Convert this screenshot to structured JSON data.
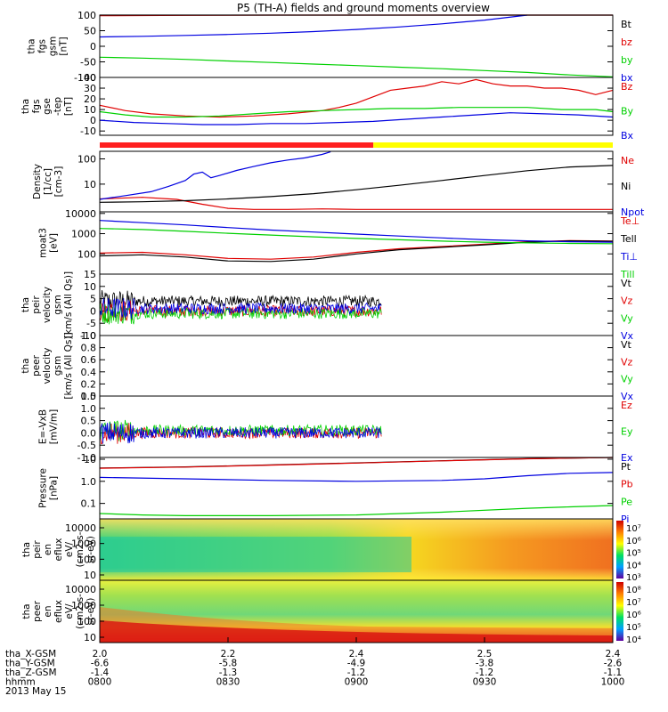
{
  "title": "P5 (TH-A) fields and ground moments overview",
  "colors": {
    "black": "#000000",
    "red": "#e00000",
    "green": "#00d000",
    "blue": "#0000e0",
    "yellow": "#ffff00"
  },
  "chart_data": [
    {
      "type": "line",
      "ylabel": [
        "tha",
        "fgs",
        "gsm",
        "[nT]"
      ],
      "ylim": [
        -100,
        100
      ],
      "yticks": [
        "100",
        "50",
        "0",
        "-50",
        "-100"
      ],
      "series": [
        {
          "name": "Bt",
          "color": "black",
          "x": [
            0,
            10,
            20,
            30,
            60
          ],
          "y": [
            100,
            101,
            103,
            104,
            106
          ]
        },
        {
          "name": "bz",
          "color": "red",
          "x": [
            0,
            10,
            20,
            30,
            60
          ],
          "y": [
            98,
            99,
            100,
            101,
            103
          ]
        },
        {
          "name": "by",
          "color": "green",
          "x": [
            0,
            5,
            10,
            15,
            20,
            25,
            30,
            35,
            40,
            45,
            50,
            55,
            60
          ],
          "y": [
            -35,
            -38,
            -42,
            -47,
            -52,
            -57,
            -62,
            -67,
            -72,
            -78,
            -84,
            -92,
            -98
          ]
        },
        {
          "name": "bx",
          "color": "blue",
          "x": [
            0,
            5,
            10,
            15,
            20,
            25,
            30,
            35,
            40,
            45,
            50
          ],
          "y": [
            30,
            32,
            35,
            38,
            42,
            47,
            54,
            62,
            72,
            84,
            100
          ]
        }
      ]
    },
    {
      "type": "line",
      "ylabel": [
        "tha",
        "fgs",
        "gse",
        "-tep",
        "[nT]"
      ],
      "ylim": [
        -14,
        40
      ],
      "yticks": [
        "40",
        "30",
        "20",
        "10",
        "0",
        "-10"
      ],
      "series": [
        {
          "name": "Bz",
          "color": "red",
          "x": [
            0,
            3,
            6,
            10,
            14,
            18,
            22,
            26,
            28,
            30,
            32,
            34,
            36,
            38,
            40,
            42,
            44,
            46,
            48,
            50,
            52,
            54,
            56,
            58,
            60
          ],
          "y": [
            14,
            9,
            6,
            4,
            3,
            4,
            6,
            9,
            12,
            16,
            22,
            28,
            30,
            32,
            36,
            34,
            38,
            34,
            32,
            32,
            30,
            30,
            28,
            24,
            28
          ]
        },
        {
          "name": "By",
          "color": "green",
          "x": [
            0,
            3,
            6,
            10,
            14,
            18,
            22,
            26,
            30,
            34,
            38,
            42,
            46,
            50,
            54,
            58,
            60
          ],
          "y": [
            8,
            5,
            3,
            3,
            4,
            6,
            8,
            9,
            10,
            11,
            11,
            12,
            12,
            12,
            10,
            10,
            8
          ]
        },
        {
          "name": "Bx",
          "color": "blue",
          "x": [
            0,
            4,
            8,
            12,
            16,
            20,
            24,
            28,
            32,
            36,
            40,
            44,
            48,
            52,
            56,
            60
          ],
          "y": [
            0,
            -2,
            -3,
            -4,
            -4,
            -3,
            -3,
            -2,
            -1,
            1,
            3,
            5,
            7,
            6,
            5,
            3
          ]
        }
      ]
    },
    {
      "type": "line",
      "scale": "log",
      "ylabel": [
        "Density",
        "[1/cc]",
        "[cm-3]"
      ],
      "ylim": [
        0.8,
        200
      ],
      "yticks": [
        {
          "v": 100,
          "label": "100"
        },
        {
          "v": 10,
          "label": "10"
        }
      ],
      "series": [
        {
          "name": "Ne",
          "color": "red",
          "x": [
            0,
            5,
            9,
            12,
            15,
            18,
            22,
            26,
            30,
            35,
            40,
            45,
            50,
            55,
            60
          ],
          "y": [
            2.6,
            3.0,
            2.5,
            1.6,
            1.1,
            1.0,
            1.0,
            1.05,
            1.0,
            1.0,
            1.0,
            1.0,
            1.0,
            1.0,
            1.0
          ]
        },
        {
          "name": "Ni",
          "color": "black",
          "x": [
            0,
            5,
            10,
            15,
            20,
            25,
            30,
            35,
            40,
            45,
            50,
            55,
            60
          ],
          "y": [
            1.9,
            2.0,
            2.2,
            2.6,
            3.2,
            4.2,
            6.0,
            9.0,
            14,
            22,
            34,
            48,
            55
          ]
        },
        {
          "name": "Npot",
          "color": "blue",
          "x": [
            0,
            3,
            6,
            8,
            10,
            11,
            12,
            13,
            14,
            16,
            18,
            20,
            22,
            24,
            26,
            27
          ],
          "y": [
            2.5,
            3.5,
            5,
            8,
            14,
            25,
            30,
            18,
            22,
            35,
            50,
            70,
            90,
            110,
            150,
            190
          ]
        }
      ]
    },
    {
      "type": "line",
      "scale": "log",
      "ylabel": [
        "moat3",
        "[eV]"
      ],
      "ylim": [
        10,
        12000
      ],
      "yticks": [
        {
          "v": 10000,
          "label": "10000"
        },
        {
          "v": 1000,
          "label": "1000"
        },
        {
          "v": 100,
          "label": "100"
        }
      ],
      "series": [
        {
          "name": "Te⊥",
          "color": "red",
          "x": [
            0,
            5,
            10,
            15,
            20,
            25,
            30,
            35,
            40,
            45,
            50,
            55,
            60
          ],
          "y": [
            110,
            120,
            90,
            60,
            55,
            70,
            120,
            180,
            230,
            300,
            400,
            450,
            430
          ]
        },
        {
          "name": "Tell",
          "color": "black",
          "x": [
            0,
            5,
            10,
            15,
            20,
            25,
            30,
            35,
            40,
            45,
            50,
            55,
            60
          ],
          "y": [
            80,
            90,
            70,
            45,
            42,
            55,
            100,
            160,
            210,
            280,
            380,
            440,
            420
          ]
        },
        {
          "name": "Ti⊥",
          "color": "blue",
          "x": [
            0,
            5,
            10,
            15,
            20,
            25,
            30,
            35,
            40,
            45,
            50,
            55,
            60
          ],
          "y": [
            4500,
            3500,
            2700,
            2000,
            1500,
            1200,
            950,
            760,
            620,
            500,
            440,
            400,
            380
          ]
        },
        {
          "name": "Till",
          "color": "green",
          "x": [
            0,
            5,
            10,
            15,
            20,
            25,
            30,
            35,
            40,
            45,
            50,
            55,
            60
          ],
          "y": [
            1800,
            1600,
            1300,
            1050,
            850,
            700,
            580,
            500,
            430,
            380,
            350,
            330,
            320
          ]
        }
      ]
    },
    {
      "type": "line",
      "ylabel": [
        "tha",
        "peir",
        "velocity",
        "gsm",
        "[km/s (All Qs)]"
      ],
      "ylim": [
        -10,
        15
      ],
      "yticks": [
        "15",
        "10",
        "5",
        "0",
        "-5",
        "-10"
      ],
      "noise_end": 33,
      "series": [
        {
          "name": "Vt",
          "color": "black",
          "center": 4
        },
        {
          "name": "Vz",
          "color": "red",
          "center": 0
        },
        {
          "name": "Vy",
          "color": "green",
          "center": -1
        },
        {
          "name": "Vx",
          "color": "blue",
          "center": 1
        }
      ]
    },
    {
      "type": "line",
      "ylabel": [
        "tha",
        "peer",
        "velocity",
        "gsm",
        "[km/s (All Qs)]"
      ],
      "ylim": [
        0,
        1
      ],
      "yticks": [
        "1.0",
        "0.8",
        "0.6",
        "0.4",
        "0.2",
        "0.0"
      ],
      "series": [
        {
          "name": "Vt",
          "color": "black"
        },
        {
          "name": "Vz",
          "color": "red"
        },
        {
          "name": "Vy",
          "color": "green"
        },
        {
          "name": "Vx",
          "color": "blue"
        }
      ]
    },
    {
      "type": "line",
      "ylabel": [
        "E=-VxB",
        "[mV/m]"
      ],
      "ylim": [
        -1,
        1.5
      ],
      "yticks": [
        "1.5",
        "1.0",
        "0.5",
        "0.0",
        "-0.5",
        "-1.0"
      ],
      "noise_end": 33,
      "series": [
        {
          "name": "Ez",
          "color": "red",
          "center": 0
        },
        {
          "name": "Ey",
          "color": "green",
          "center": 0.1
        },
        {
          "name": "Ex",
          "color": "blue",
          "center": 0
        }
      ]
    },
    {
      "type": "line",
      "scale": "log",
      "ylabel": [
        "Pressure",
        "[nPa]"
      ],
      "ylim": [
        0.02,
        12
      ],
      "yticks": [
        {
          "v": 10,
          "label": "10"
        },
        {
          "v": 1,
          "label": "1.0"
        },
        {
          "v": 0.1,
          "label": "0.1"
        }
      ],
      "series": [
        {
          "name": "Pt",
          "color": "black",
          "x": [
            0,
            10,
            20,
            30,
            40,
            50,
            60
          ],
          "y": [
            4,
            4.5,
            5.5,
            6.8,
            8.5,
            10.5,
            13
          ]
        },
        {
          "name": "Pb",
          "color": "red",
          "x": [
            0,
            10,
            20,
            30,
            40,
            50,
            60
          ],
          "y": [
            3.9,
            4.4,
            5.4,
            6.7,
            8.4,
            10.4,
            12.8
          ]
        },
        {
          "name": "Pe",
          "color": "green",
          "x": [
            0,
            5,
            10,
            20,
            30,
            40,
            50,
            55,
            60
          ],
          "y": [
            0.035,
            0.03,
            0.028,
            0.028,
            0.03,
            0.04,
            0.06,
            0.07,
            0.08
          ]
        },
        {
          "name": "Pi",
          "color": "blue",
          "x": [
            0,
            10,
            20,
            30,
            40,
            45,
            50,
            55,
            60
          ],
          "y": [
            1.5,
            1.3,
            1.1,
            1.0,
            1.1,
            1.3,
            1.8,
            2.3,
            2.5
          ]
        }
      ]
    },
    {
      "type": "heatmap",
      "ylabel": [
        "tha",
        "peir",
        "en",
        "eflux",
        "eV/",
        "(cm2-s-",
        "sr-eV)"
      ],
      "yticks": [
        "10000",
        "1000",
        "100",
        "10"
      ],
      "colorbar": [
        "10⁷",
        "10⁶",
        "10⁵",
        "10⁴",
        "10³"
      ]
    },
    {
      "type": "heatmap",
      "ylabel": [
        "tha",
        "peer",
        "en",
        "eflux",
        "eV/",
        "(cm2-s-",
        "sr-eV)"
      ],
      "yticks": [
        "10000",
        "1000",
        "100",
        "10"
      ],
      "colorbar": [
        "10⁸",
        "10⁷",
        "10⁶",
        "10⁵",
        "10⁴"
      ]
    }
  ],
  "flag_bar": {
    "red_until_minute": 32
  },
  "x_axis": {
    "row_labels": [
      "tha_X-GSM",
      "tha_Y-GSM",
      "tha_Z-GSM",
      "hhmm",
      "2013 May 15"
    ],
    "ticks": [
      {
        "minute": 0,
        "vals": [
          "2.0",
          "-6.6",
          "-1.4",
          "0800"
        ]
      },
      {
        "minute": 15,
        "vals": [
          "2.2",
          "-5.8",
          "-1.3",
          "0830"
        ]
      },
      {
        "minute": 30,
        "vals": [
          "2.4",
          "-4.9",
          "-1.2",
          "0900"
        ]
      },
      {
        "minute": 45,
        "vals": [
          "2.5",
          "-3.8",
          "-1.2",
          "0930"
        ]
      },
      {
        "minute": 60,
        "vals": [
          "2.4",
          "-2.6",
          "-1.1",
          "1000"
        ]
      }
    ]
  },
  "legends": [
    [
      {
        "t": "Bt",
        "c": "black"
      },
      {
        "t": "bz",
        "c": "red"
      },
      {
        "t": "by",
        "c": "green"
      },
      {
        "t": "bx",
        "c": "blue"
      }
    ],
    [
      {
        "t": "Bz",
        "c": "red"
      },
      {
        "t": "By",
        "c": "green"
      },
      {
        "t": "Bx",
        "c": "blue"
      }
    ],
    [
      {
        "t": "Ne",
        "c": "red"
      },
      {
        "t": "Ni",
        "c": "black"
      },
      {
        "t": "Npot",
        "c": "blue"
      }
    ],
    [
      {
        "t": "Te⊥",
        "c": "red"
      },
      {
        "t": "Tell",
        "c": "black"
      },
      {
        "t": "Ti⊥",
        "c": "blue"
      },
      {
        "t": "Till",
        "c": "green"
      }
    ],
    [
      {
        "t": "Vt",
        "c": "black"
      },
      {
        "t": "Vz",
        "c": "red"
      },
      {
        "t": "Vy",
        "c": "green"
      },
      {
        "t": "Vx",
        "c": "blue"
      }
    ],
    [
      {
        "t": "Vt",
        "c": "black"
      },
      {
        "t": "Vz",
        "c": "red"
      },
      {
        "t": "Vy",
        "c": "green"
      },
      {
        "t": "Vx",
        "c": "blue"
      }
    ],
    [
      {
        "t": "Ez",
        "c": "red"
      },
      {
        "t": "Ey",
        "c": "green"
      },
      {
        "t": "Ex",
        "c": "blue"
      }
    ],
    [
      {
        "t": "Pt",
        "c": "black"
      },
      {
        "t": "Pb",
        "c": "red"
      },
      {
        "t": "Pe",
        "c": "green"
      },
      {
        "t": "Pi",
        "c": "blue"
      }
    ]
  ]
}
